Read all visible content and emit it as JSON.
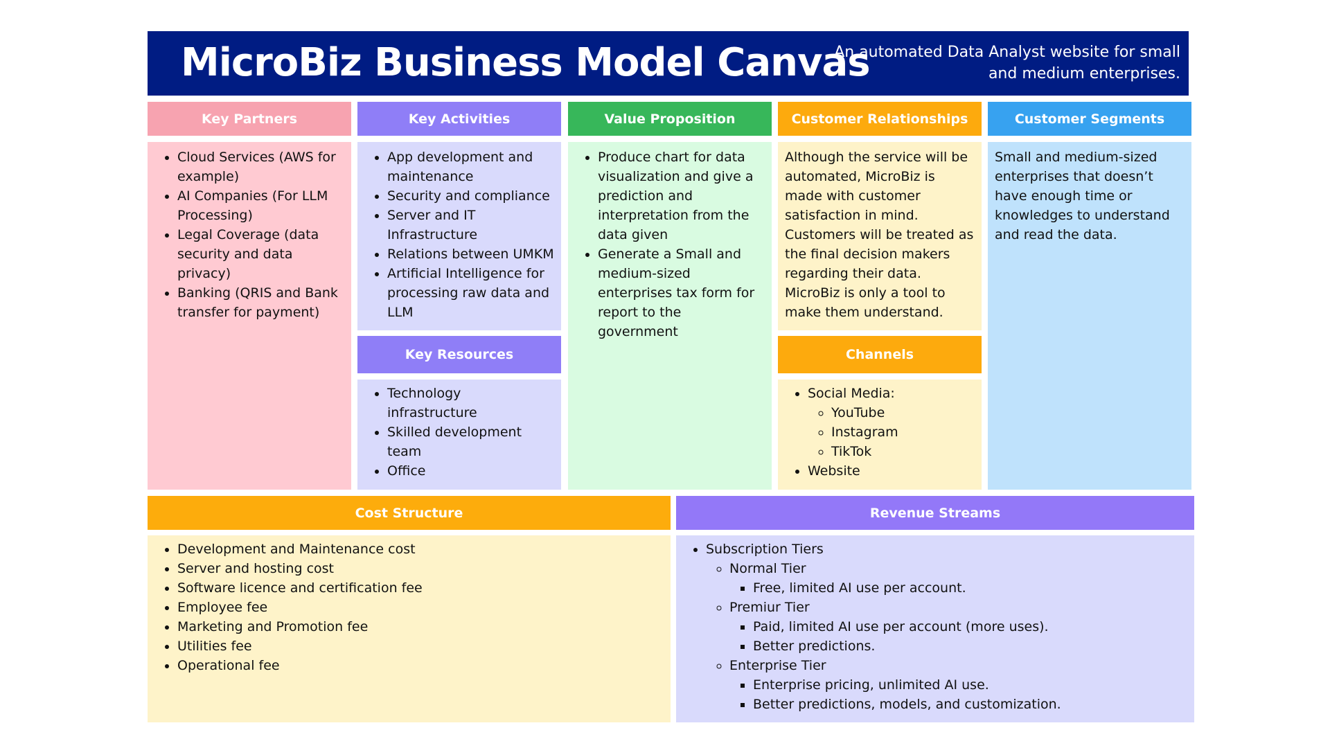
{
  "header": {
    "title": "MicroBiz Business Model Canvas",
    "subtitle": "An automated Data Analyst website for small and medium enterprises."
  },
  "key_partners": {
    "title": "Key Partners",
    "items": [
      "Cloud Services (AWS for example)",
      "AI Companies (For LLM Processing)",
      "Legal Coverage (data security and data privacy)",
      "Banking (QRIS and Bank transfer for payment)"
    ]
  },
  "key_activities": {
    "title": "Key Activities",
    "items": [
      "App development and maintenance",
      "Security and compliance",
      "Server and IT Infrastructure",
      "Relations between UMKM",
      "Artificial Intelligence for processing raw data and LLM"
    ]
  },
  "key_resources": {
    "title": "Key Resources",
    "items": [
      "Technology infrastructure",
      "Skilled development team",
      "Office"
    ]
  },
  "value_proposition": {
    "title": "Value Proposition",
    "items": [
      "Produce chart for data visualization and give a prediction and interpretation from the data given",
      "Generate a Small and medium-sized enterprises tax form for report to the government"
    ]
  },
  "customer_relationships": {
    "title": "Customer Relationships",
    "text": "Although the service will be automated, MicroBiz is made with customer satisfaction in mind. Customers will be treated as the final decision makers regarding their data. MicroBiz is only a tool to make them understand."
  },
  "channels": {
    "title": "Channels",
    "social_label": "Social Media:",
    "social_items": [
      "YouTube",
      "Instagram",
      "TikTok"
    ],
    "website": "Website"
  },
  "customer_segments": {
    "title": "Customer Segments",
    "text": "Small and medium-sized enterprises that doesn’t have enough time or knowledges to understand and read the data."
  },
  "cost_structure": {
    "title": "Cost Structure",
    "items": [
      "Development and Maintenance cost",
      "Server and hosting cost",
      "Software licence and certification fee",
      "Employee fee",
      "Marketing and Promotion fee",
      "Utilities fee",
      "Operational fee"
    ]
  },
  "revenue_streams": {
    "title": "Revenue Streams",
    "root": "Subscription Tiers",
    "tiers": [
      {
        "name": "Normal Tier",
        "details": [
          "Free, limited AI use per account."
        ]
      },
      {
        "name": "Premiur Tier",
        "details": [
          "Paid, limited AI use per account (more uses).",
          "Better predictions."
        ]
      },
      {
        "name": "Enterprise Tier",
        "details": [
          "Enterprise pricing, unlimited AI use.",
          "Better predictions, models, and customization."
        ]
      }
    ]
  },
  "colors": {
    "banner": "#001c83",
    "key_partners_header": "#f7a3b0",
    "key_partners_body": "#ffcad2",
    "activities_header": "#8f7ef7",
    "activities_body": "#d9dafc",
    "value_header": "#37b75a",
    "value_body": "#d9fbe1",
    "relationships_header": "#fdaa0d",
    "relationships_body": "#fef3c9",
    "segments_header": "#37a2f0",
    "segments_body": "#bfe2fc",
    "cost_header": "#fdac0c",
    "cost_body": "#fef3c9",
    "revenue_header": "#9378f8",
    "revenue_body": "#d9dafc"
  }
}
